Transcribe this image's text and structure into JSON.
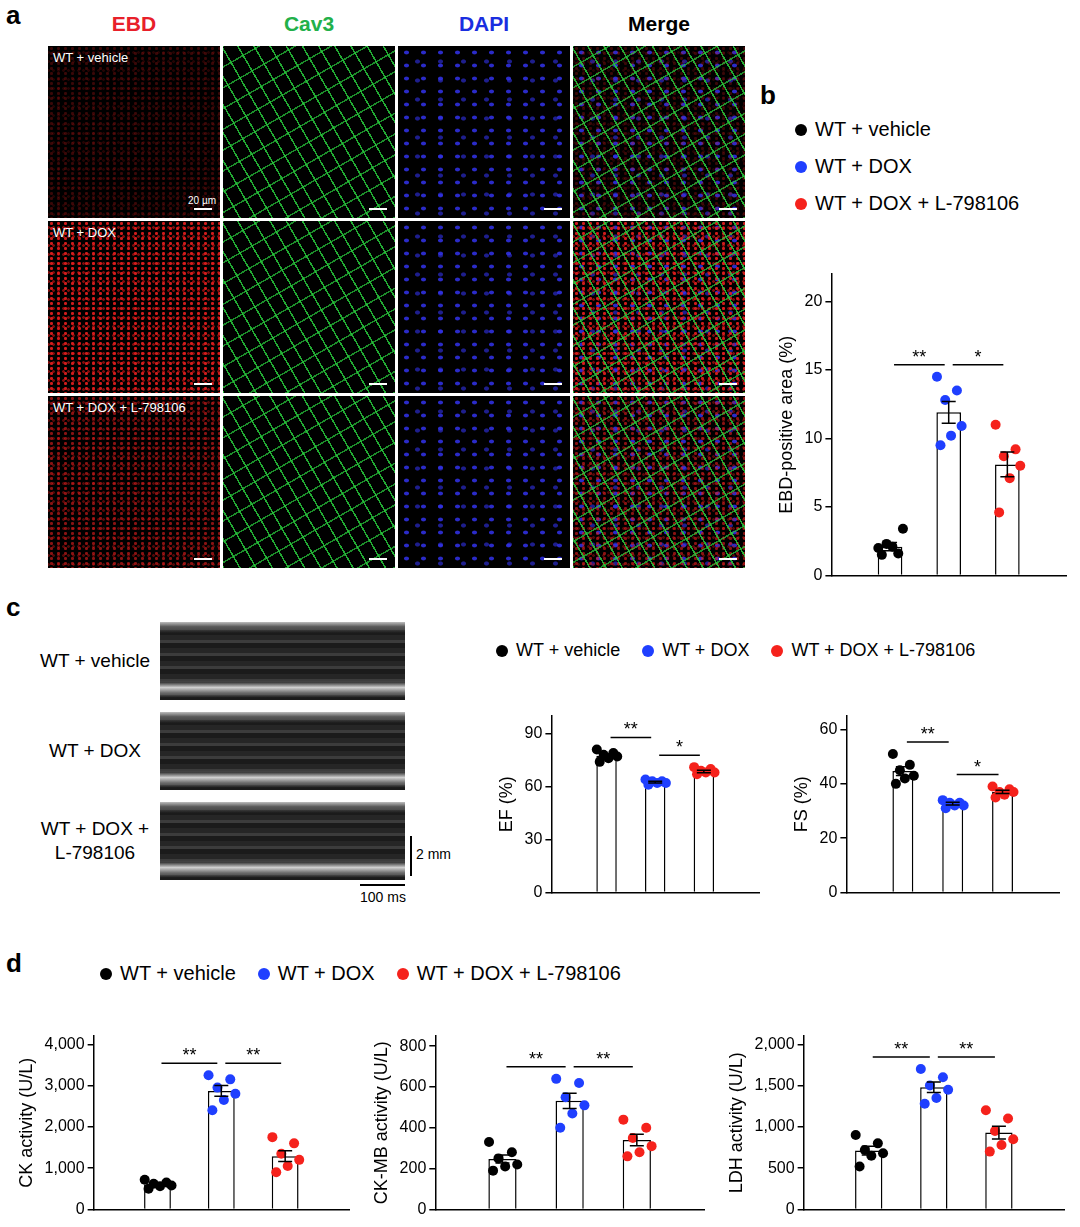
{
  "figure": {
    "panel_a": {
      "letter": "a",
      "columns": [
        {
          "label": "EBD",
          "color": "#e8202a"
        },
        {
          "label": "Cav3",
          "color": "#22b04a"
        },
        {
          "label": "DAPI",
          "color": "#1a2ee0"
        },
        {
          "label": "Merge",
          "color": "#000000"
        }
      ],
      "rows": [
        "WT + vehicle",
        "WT + DOX",
        "WT + DOX + L-798106"
      ],
      "scale_bar": "20 µm"
    },
    "panel_c_images": {
      "letter": "c",
      "rows": [
        "WT + vehicle",
        "WT + DOX",
        "WT + DOX + L-798106"
      ],
      "scale_bar_vertical": "2 mm",
      "scale_bar_horizontal": "100 ms"
    }
  },
  "chart_data": [
    {
      "panel": "b",
      "type": "bar",
      "legend": "top",
      "tick_labels": "y",
      "ylabel": "EBD-positive area (%)",
      "ylim": [
        0,
        22
      ],
      "yticks": [
        0,
        5,
        10,
        15,
        20
      ],
      "series": [
        {
          "name": "WT + vehicle",
          "color": "#000000",
          "mean": 2.1,
          "sem": 0.3,
          "values": [
            2.0,
            1.6,
            2.3,
            3.4,
            2.1,
            1.5
          ]
        },
        {
          "name": "WT + DOX",
          "color": "#1f3fff",
          "mean": 11.9,
          "sem": 0.8,
          "values": [
            14.5,
            13.5,
            12.8,
            10.9,
            10.2,
            9.5
          ]
        },
        {
          "name": "WT + DOX + L-798106",
          "color": "#f5221c",
          "mean": 8.1,
          "sem": 0.9,
          "values": [
            11.0,
            9.2,
            8.7,
            8.0,
            7.1,
            4.6
          ]
        }
      ],
      "significance": [
        {
          "groups": [
            0,
            1
          ],
          "label": "**"
        },
        {
          "groups": [
            1,
            2
          ],
          "label": "*"
        }
      ]
    },
    {
      "type": "bar",
      "legend": "top",
      "tick_labels": "y",
      "ylabel": "EF (%)",
      "ylim": [
        0,
        100
      ],
      "yticks": [
        0,
        30,
        60,
        90
      ],
      "series": [
        {
          "name": "WT + vehicle",
          "color": "#000000",
          "mean": 77.5,
          "sem": 1.0,
          "values": [
            81,
            79,
            78,
            77,
            76,
            74
          ]
        },
        {
          "name": "WT + DOX",
          "color": "#1f3fff",
          "mean": 62.5,
          "sem": 0.5,
          "values": [
            64,
            63,
            63,
            62,
            62,
            61
          ]
        },
        {
          "name": "WT + DOX + L-798106",
          "color": "#f5221c",
          "mean": 68.5,
          "sem": 0.7,
          "values": [
            71,
            70,
            69,
            68,
            68,
            67
          ]
        }
      ],
      "significance": [
        {
          "groups": [
            0,
            1
          ],
          "label": "**"
        },
        {
          "groups": [
            1,
            2
          ],
          "label": "*"
        }
      ]
    },
    {
      "type": "bar",
      "tick_labels": "y",
      "ylabel": "FS (%)",
      "ylim": [
        0,
        65
      ],
      "yticks": [
        0,
        20,
        40,
        60
      ],
      "series": [
        {
          "color": "#000000",
          "mean": 44.7,
          "sem": 1.6,
          "values": [
            51,
            47,
            45,
            43,
            42,
            40
          ]
        },
        {
          "color": "#1f3fff",
          "mean": 32.7,
          "sem": 0.5,
          "values": [
            34,
            33,
            33,
            32,
            32,
            31
          ]
        },
        {
          "color": "#f5221c",
          "mean": 37.0,
          "sem": 0.6,
          "values": [
            39,
            38,
            37,
            37,
            36,
            35
          ]
        }
      ],
      "significance": [
        {
          "groups": [
            0,
            1
          ],
          "label": "**"
        },
        {
          "groups": [
            1,
            2
          ],
          "label": "*"
        }
      ]
    },
    {
      "panel": "d",
      "type": "bar",
      "legend": "top",
      "tick_labels": "y",
      "ylabel": "CK activity (U/L)",
      "ylim": [
        0,
        4200
      ],
      "yticks": [
        0,
        {
          "value": 1000,
          "label": "1,000"
        },
        {
          "value": 2000,
          "label": "2,000"
        },
        {
          "value": 3000,
          "label": "3,000"
        },
        {
          "value": 4000,
          "label": "4,000"
        }
      ],
      "series": [
        {
          "name": "WT + vehicle",
          "color": "#000000",
          "mean": 605,
          "sem": 30,
          "values": [
            720,
            650,
            620,
            580,
            560,
            500
          ]
        },
        {
          "name": "WT + DOX",
          "color": "#1f3fff",
          "mean": 2870,
          "sem": 130,
          "values": [
            3250,
            3150,
            2950,
            2800,
            2650,
            2400
          ]
        },
        {
          "name": "WT + DOX + L-798106",
          "color": "#f5221c",
          "mean": 1290,
          "sem": 130,
          "values": [
            1750,
            1600,
            1350,
            1200,
            1050,
            900
          ]
        }
      ],
      "significance": [
        {
          "groups": [
            0,
            1
          ],
          "label": "**"
        },
        {
          "groups": [
            1,
            2
          ],
          "label": "**"
        }
      ]
    },
    {
      "type": "bar",
      "tick_labels": "y",
      "ylabel": "CK-MB activity (U/L)",
      "ylim": [
        0,
        850
      ],
      "yticks": [
        0,
        200,
        400,
        600,
        800
      ],
      "series": [
        {
          "color": "#000000",
          "mean": 247,
          "sem": 20,
          "values": [
            330,
            280,
            250,
            220,
            210,
            190
          ]
        },
        {
          "color": "#1f3fff",
          "mean": 532,
          "sem": 37,
          "values": [
            640,
            620,
            550,
            510,
            470,
            400
          ]
        },
        {
          "color": "#f5221c",
          "mean": 340,
          "sem": 28,
          "values": [
            440,
            400,
            350,
            310,
            280,
            260
          ]
        }
      ],
      "significance": [
        {
          "groups": [
            0,
            1
          ],
          "label": "**"
        },
        {
          "groups": [
            1,
            2
          ],
          "label": "**"
        }
      ]
    },
    {
      "type": "bar",
      "tick_labels": "y",
      "ylabel": "LDH activity (U/L)",
      "ylim": [
        0,
        2100
      ],
      "yticks": [
        0,
        500,
        {
          "value": 1000,
          "label": "1,000"
        },
        {
          "value": 1500,
          "label": "1,500"
        },
        {
          "value": 2000,
          "label": "2,000"
        }
      ],
      "series": [
        {
          "color": "#000000",
          "mean": 712,
          "sem": 52,
          "values": [
            900,
            800,
            720,
            680,
            650,
            520
          ]
        },
        {
          "color": "#1f3fff",
          "mean": 1480,
          "sem": 64,
          "values": [
            1700,
            1600,
            1500,
            1450,
            1350,
            1280
          ]
        },
        {
          "color": "#f5221c",
          "mean": 930,
          "sem": 78,
          "values": [
            1200,
            1100,
            950,
            850,
            780,
            700
          ]
        }
      ],
      "significance": [
        {
          "groups": [
            0,
            1
          ],
          "label": "**"
        },
        {
          "groups": [
            1,
            2
          ],
          "label": "**"
        }
      ]
    }
  ]
}
